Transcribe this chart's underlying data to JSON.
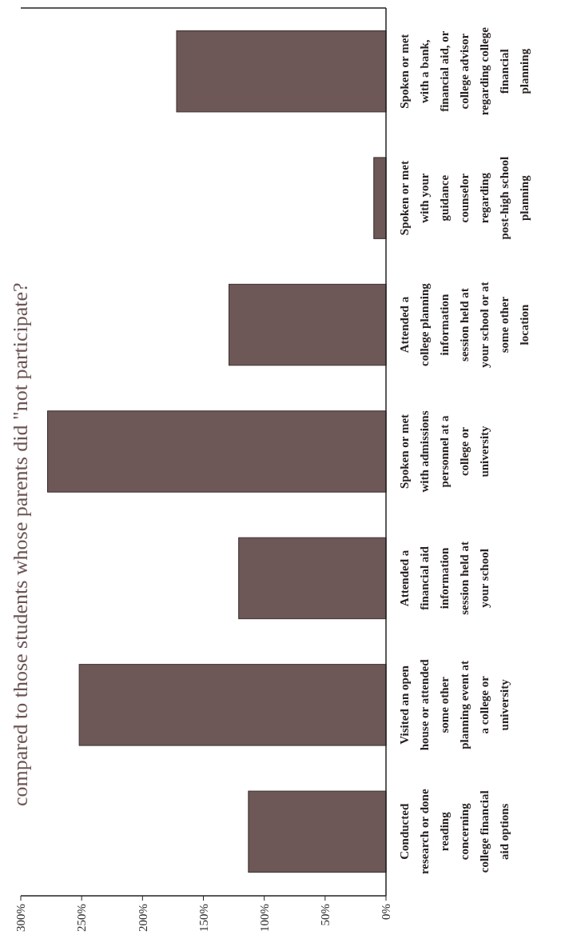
{
  "chart_data": {
    "type": "bar",
    "orientation": "horizontal",
    "title": "compared to those students whose parents did \"not participate?",
    "categories": [
      "Spoken or met with a bank, financial aid, or college advisor regarding college financial planning",
      "Spoken or met with your guidance counselor regarding post-high school planning",
      "Attended a college planning information session held at your school or at some other location",
      "Spoken or met with admissions personnel at a college or university",
      "Attended a financial aid information session held at your school",
      "Visited an open house or attended some other planning event at a college or university",
      "Conducted research or done reading concerning college financial aid options"
    ],
    "values": [
      172,
      10,
      129,
      278,
      121,
      252,
      113
    ],
    "color": "#6e5757",
    "xlim": [
      300,
      0
    ],
    "xticks": [
      {
        "value": 300,
        "label": "300%"
      },
      {
        "value": 250,
        "label": "250%"
      },
      {
        "value": 200,
        "label": "200%"
      },
      {
        "value": 150,
        "label": "150%"
      },
      {
        "value": 100,
        "label": "100%"
      },
      {
        "value": 50,
        "label": "50%"
      },
      {
        "value": 0,
        "label": "0%"
      }
    ],
    "grid": false
  }
}
